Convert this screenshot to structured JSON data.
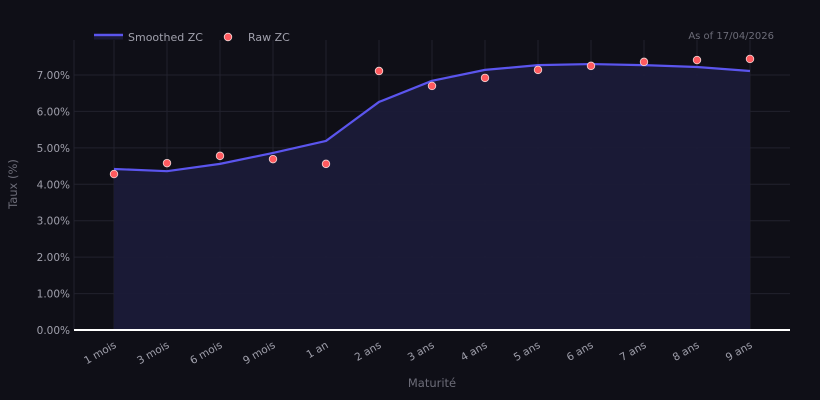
{
  "header": {
    "as_of": "As of 17/04/2026"
  },
  "legend": {
    "items": [
      {
        "label": "Smoothed ZC",
        "kind": "line",
        "color": "#5b55ee"
      },
      {
        "label": "Raw ZC",
        "kind": "marker",
        "color": "#ff5a5f"
      }
    ]
  },
  "colors": {
    "background": "#0f0f17",
    "line": "#5b55ee",
    "fill": "#1b1b38",
    "marker": "#ff5a5f",
    "marker_edge": "#f3d6d6",
    "grid": "#22222e",
    "axis_zero": "#ffffff",
    "tick_text": "#a0a0ac",
    "label_text": "#6c6c78"
  },
  "chart_data": {
    "type": "line",
    "title": "",
    "xlabel": "Maturité",
    "ylabel": "Taux (%)",
    "ylim": [
      0,
      7.9
    ],
    "yticks": [
      0,
      1,
      2,
      3,
      4,
      5,
      6,
      7
    ],
    "ytick_labels": [
      "0.00%",
      "1.00%",
      "2.00%",
      "3.00%",
      "4.00%",
      "5.00%",
      "6.00%",
      "7.00%"
    ],
    "grid": true,
    "legend_position": "top-left",
    "annotation": "As of 17/04/2026",
    "categories": [
      "1 mois",
      "3 mois",
      "6 mois",
      "9 mois",
      "1 an",
      "2 ans",
      "3 ans",
      "4 ans",
      "5 ans",
      "6 ans",
      "7 ans",
      "8 ans",
      "9 ans"
    ],
    "series": [
      {
        "name": "Smoothed ZC",
        "type": "line",
        "values": [
          4.42,
          4.36,
          4.56,
          4.86,
          5.19,
          6.26,
          6.84,
          7.14,
          7.27,
          7.3,
          7.27,
          7.22,
          7.11
        ]
      },
      {
        "name": "Raw ZC",
        "type": "scatter",
        "values": [
          4.28,
          4.58,
          4.78,
          4.69,
          4.56,
          7.11,
          6.7,
          6.92,
          7.14,
          7.25,
          7.36,
          7.41,
          7.44
        ]
      }
    ]
  }
}
